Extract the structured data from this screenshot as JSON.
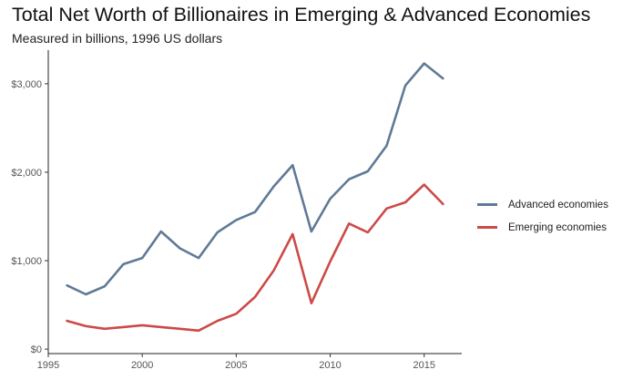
{
  "chart_data": {
    "type": "line",
    "title": "Total Net Worth of Billionaires in Emerging & Advanced Economies",
    "subtitle": "Measured in billions, 1996 US dollars",
    "xlabel": "",
    "ylabel": "",
    "xlim": [
      1995,
      2017
    ],
    "ylim": [
      -50,
      3380
    ],
    "x_ticks": [
      1995,
      2000,
      2005,
      2010,
      2015
    ],
    "y_ticks": [
      0,
      1000,
      2000,
      3000
    ],
    "y_tick_labels": [
      "$0",
      "$1,000",
      "$2,000",
      "$3,000"
    ],
    "grid": false,
    "legend_position": "right",
    "x": [
      1996,
      1997,
      1998,
      1999,
      2000,
      2001,
      2002,
      2003,
      2004,
      2005,
      2006,
      2007,
      2008,
      2009,
      2010,
      2011,
      2012,
      2013,
      2014,
      2015,
      2016
    ],
    "series": [
      {
        "name": "Advanced economies",
        "color": "#5f7a96",
        "values": [
          720,
          620,
          710,
          960,
          1030,
          1330,
          1140,
          1030,
          1320,
          1460,
          1550,
          1840,
          2080,
          1330,
          1700,
          1920,
          2010,
          2300,
          2980,
          3230,
          3060
        ]
      },
      {
        "name": "Emerging economies",
        "color": "#cc4a48",
        "values": [
          320,
          260,
          230,
          250,
          270,
          250,
          230,
          210,
          320,
          400,
          590,
          890,
          1300,
          520,
          990,
          1420,
          1320,
          1590,
          1660,
          1860,
          1640
        ]
      }
    ]
  }
}
